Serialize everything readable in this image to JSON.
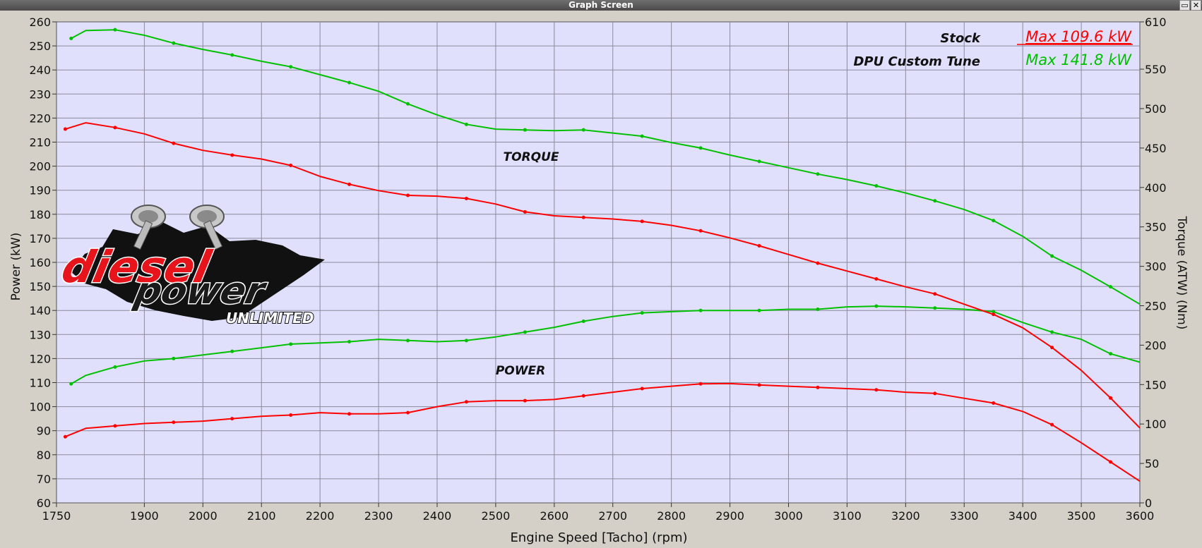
{
  "window": {
    "title": "Graph Screen",
    "restore_icon": "restore-icon",
    "close_icon": "close-icon"
  },
  "chart_data": {
    "type": "line",
    "xlabel": "Engine Speed [Tacho] (rpm)",
    "ylabel": "Power (kW)",
    "y2label": "Torque (ATW) (Nm)",
    "xlim": [
      1750,
      3600
    ],
    "ylim": [
      60,
      260
    ],
    "y2lim": [
      0,
      610
    ],
    "x_ticks": [
      1750,
      1900,
      2000,
      2100,
      2200,
      2300,
      2400,
      2500,
      2600,
      2700,
      2800,
      2900,
      3000,
      3100,
      3200,
      3300,
      3400,
      3500,
      3600
    ],
    "y_ticks": [
      60,
      70,
      80,
      90,
      100,
      110,
      120,
      130,
      140,
      150,
      160,
      170,
      180,
      190,
      200,
      210,
      220,
      230,
      240,
      250,
      260
    ],
    "y2_ticks": [
      0,
      50,
      100,
      150,
      200,
      250,
      300,
      350,
      400,
      450,
      500,
      550,
      610
    ],
    "grid": true,
    "annotations": [
      "TORQUE",
      "POWER"
    ],
    "legend": {
      "placement": "top-right",
      "entries": [
        {
          "name": "Stock",
          "value": "Max 109.6 kW",
          "color": "#ff0000"
        },
        {
          "name": "DPU Custom Tune",
          "value": "Max 141.8 kW",
          "color": "#00c000"
        }
      ]
    },
    "series": [
      {
        "name": "Stock",
        "quantity": "power",
        "axis": "left",
        "color": "#ff0000",
        "x": [
          1765,
          1800,
          1850,
          1900,
          1950,
          2000,
          2050,
          2100,
          2150,
          2200,
          2250,
          2300,
          2350,
          2400,
          2450,
          2500,
          2550,
          2600,
          2650,
          2700,
          2750,
          2800,
          2850,
          2900,
          2950,
          3000,
          3050,
          3100,
          3150,
          3200,
          3250,
          3300,
          3350,
          3400,
          3450,
          3500,
          3550,
          3600
        ],
        "y": [
          87.5,
          91,
          92,
          93,
          93.5,
          94,
          95,
          96,
          96.5,
          97.5,
          97,
          97,
          97.5,
          100,
          102,
          102.5,
          102.5,
          103,
          104.5,
          106,
          107.5,
          108.5,
          109.5,
          109.6,
          109,
          108.5,
          108,
          107.5,
          107,
          106,
          105.5,
          103.5,
          101.5,
          98,
          92.5,
          85,
          77,
          69
        ]
      },
      {
        "name": "DPU Custom Tune",
        "quantity": "power",
        "axis": "left",
        "color": "#00c000",
        "x": [
          1775,
          1800,
          1850,
          1900,
          1950,
          2000,
          2050,
          2100,
          2150,
          2200,
          2250,
          2300,
          2350,
          2400,
          2450,
          2500,
          2550,
          2600,
          2650,
          2700,
          2750,
          2800,
          2850,
          2900,
          2950,
          3000,
          3050,
          3100,
          3150,
          3200,
          3250,
          3300,
          3350,
          3400,
          3450,
          3500,
          3550,
          3600
        ],
        "y": [
          109.5,
          113,
          116.5,
          119,
          120,
          121.5,
          123,
          124.5,
          126,
          126.5,
          127,
          128,
          127.5,
          127,
          127.5,
          129,
          131,
          133,
          135.5,
          137.5,
          139,
          139.5,
          140,
          140,
          140,
          140.5,
          140.5,
          141.5,
          141.8,
          141.5,
          141,
          140.5,
          139.5,
          135,
          131,
          128,
          122,
          118.5
        ]
      },
      {
        "name": "Stock",
        "quantity": "torque",
        "axis": "right",
        "color": "#ff0000",
        "x": [
          1765,
          1800,
          1850,
          1900,
          1950,
          2000,
          2050,
          2100,
          2150,
          2200,
          2250,
          2300,
          2350,
          2400,
          2450,
          2500,
          2550,
          2600,
          2650,
          2700,
          2750,
          2800,
          2850,
          2900,
          2950,
          3000,
          3050,
          3100,
          3150,
          3200,
          3250,
          3300,
          3350,
          3400,
          3450,
          3500,
          3550,
          3600
        ],
        "y": [
          474,
          482,
          476,
          468,
          456,
          447,
          441,
          436,
          428,
          414,
          404,
          396,
          390,
          389,
          386,
          379,
          369,
          364,
          362,
          360,
          357,
          352,
          345,
          336,
          326,
          315,
          304,
          294,
          284,
          274,
          265,
          252,
          239,
          222,
          197,
          168,
          133,
          95
        ]
      },
      {
        "name": "DPU Custom Tune",
        "quantity": "torque",
        "axis": "right",
        "color": "#00c000",
        "x": [
          1775,
          1800,
          1850,
          1900,
          1950,
          2000,
          2050,
          2100,
          2150,
          2200,
          2250,
          2300,
          2350,
          2400,
          2450,
          2500,
          2550,
          2600,
          2650,
          2700,
          2750,
          2800,
          2850,
          2900,
          2950,
          3000,
          3050,
          3100,
          3150,
          3200,
          3250,
          3300,
          3350,
          3400,
          3450,
          3500,
          3550,
          3600
        ],
        "y": [
          589,
          599,
          600,
          593,
          583,
          575,
          568,
          560,
          553,
          543,
          533,
          522,
          506,
          492,
          480,
          474,
          473,
          472,
          473,
          469,
          465,
          457,
          450,
          441,
          433,
          425,
          417,
          410,
          402,
          393,
          383,
          372,
          358,
          338,
          313,
          295,
          274,
          252
        ]
      }
    ]
  }
}
